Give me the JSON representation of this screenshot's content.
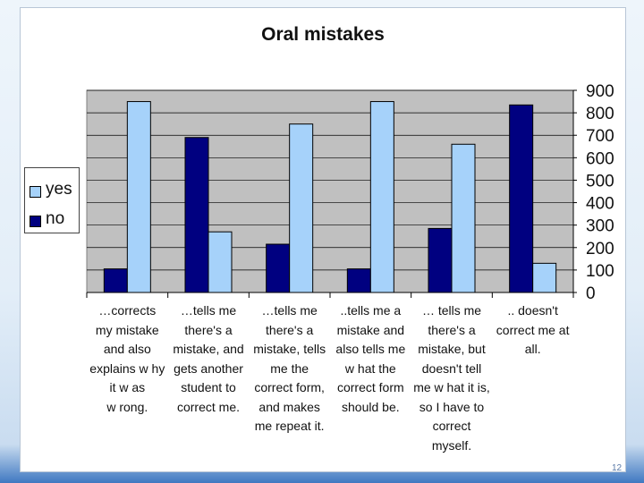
{
  "page_number": "12",
  "chart_data": {
    "type": "bar",
    "title": "Oral mistakes",
    "xlabel": "",
    "ylabel": "",
    "ylim": [
      0,
      900
    ],
    "yticks": [
      0,
      100,
      200,
      300,
      400,
      500,
      600,
      700,
      800,
      900
    ],
    "y_axis_side": "right",
    "grid": true,
    "legend_position": "left",
    "categories": [
      "…corrects my mistake and also explains w hy it w as w rong.",
      "…tells me there's a mistake, and gets another student to correct me.",
      "…tells me there's a mistake, tells me the correct form, and makes me repeat it.",
      "..tells me a mistake and also tells me w hat the correct form should be.",
      "… tells me there's a mistake, but doesn't tell me w hat it is, so I have to correct myself.",
      ".. doesn't correct me at all."
    ],
    "category_lines": [
      [
        "…corrects",
        "my mistake",
        "and also",
        "explains w hy",
        "it w as",
        "w rong."
      ],
      [
        "…tells me",
        "there's a",
        "mistake, and",
        "gets another",
        "student to",
        "correct me."
      ],
      [
        "…tells me",
        "there's a",
        "mistake, tells",
        "me the",
        "correct form,",
        "and makes",
        "me repeat it."
      ],
      [
        "..tells me a",
        "mistake and",
        "also tells me",
        "w hat the",
        "correct form",
        "should be."
      ],
      [
        "… tells me",
        "there's a",
        "mistake, but",
        "doesn't tell",
        "me w hat it is,",
        "so I have to",
        "correct",
        "myself."
      ],
      [
        ".. doesn't",
        "correct me at",
        "all."
      ]
    ],
    "series": [
      {
        "name": "yes",
        "color": "#a6d2fa",
        "values": [
          850,
          270,
          750,
          850,
          660,
          130
        ]
      },
      {
        "name": "no",
        "color": "#000080",
        "values": [
          105,
          690,
          215,
          105,
          285,
          835
        ]
      }
    ],
    "plot_background": "#c0c0c0"
  }
}
